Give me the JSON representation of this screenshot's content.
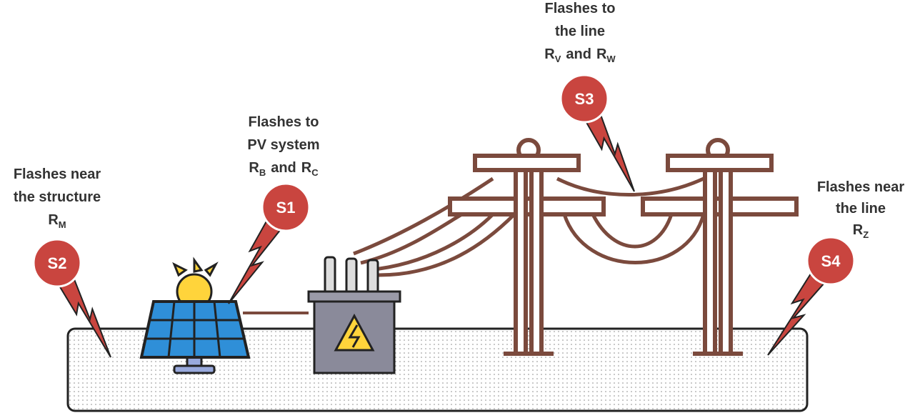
{
  "sources": [
    {
      "badge": "S2",
      "lines": [
        "Flashes near",
        "the structure"
      ],
      "risks": [
        {
          "symbol": "R",
          "subscript": "M"
        }
      ]
    },
    {
      "badge": "S1",
      "lines": [
        "Flashes to",
        "PV system"
      ],
      "risks": [
        {
          "symbol": "R",
          "subscript": "B"
        },
        {
          "symbol": "R",
          "subscript": "C"
        }
      ],
      "joiner": "and"
    },
    {
      "badge": "S3",
      "lines": [
        "Flashes to",
        "the line"
      ],
      "risks": [
        {
          "symbol": "R",
          "subscript": "V"
        },
        {
          "symbol": "R",
          "subscript": "W"
        }
      ],
      "joiner": "and"
    },
    {
      "badge": "S4",
      "lines": [
        "Flashes near",
        "the line"
      ],
      "risks": [
        {
          "symbol": "R",
          "subscript": "Z"
        }
      ]
    }
  ]
}
